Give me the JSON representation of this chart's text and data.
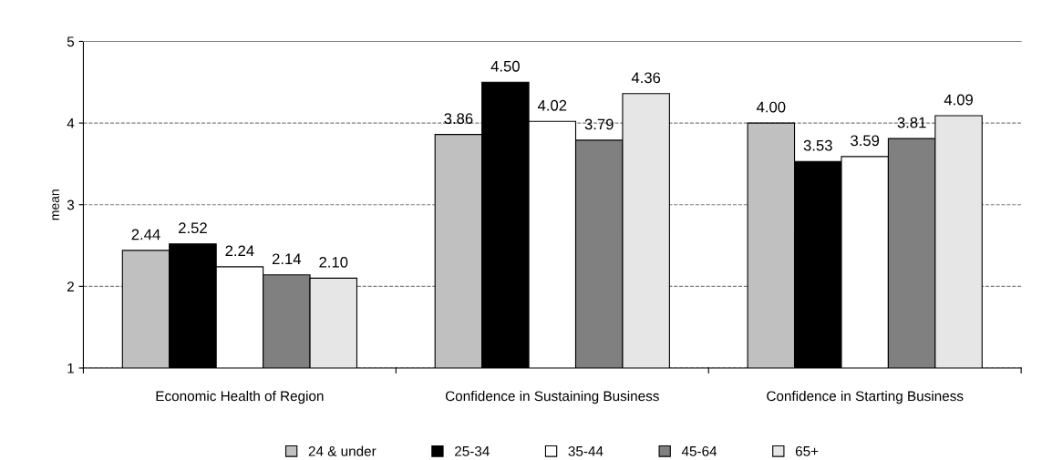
{
  "chart_data": {
    "type": "bar",
    "ylabel": "mean",
    "categories": [
      "Economic Health of Region",
      "Confidence in Sustaining Business",
      "Confidence in Starting Business"
    ],
    "series": [
      {
        "name": "24 & under",
        "color": "#c0c0c0",
        "values": [
          2.44,
          3.86,
          4.0
        ],
        "value_labels": [
          "2.44",
          "3.86",
          "4.00"
        ]
      },
      {
        "name": "25-34",
        "color": "#000000",
        "values": [
          2.52,
          4.5,
          3.53
        ],
        "value_labels": [
          "2.52",
          "4.50",
          "3.53"
        ]
      },
      {
        "name": "35-44",
        "color": "#ffffff",
        "values": [
          2.24,
          4.02,
          3.59
        ],
        "value_labels": [
          "2.24",
          "4.02",
          "3.59"
        ]
      },
      {
        "name": "45-64",
        "color": "#808080",
        "values": [
          2.14,
          3.79,
          3.81
        ],
        "value_labels": [
          "2.14",
          "3.79",
          "3.81"
        ]
      },
      {
        "name": "65+",
        "color": "#e6e6e6",
        "values": [
          2.1,
          4.36,
          4.09
        ],
        "value_labels": [
          "2.10",
          "4.36",
          "4.09"
        ]
      }
    ],
    "ylim": [
      1,
      5
    ],
    "yticks": [
      1,
      2,
      3,
      4,
      5
    ],
    "grid": "y",
    "legend": "bottom"
  }
}
